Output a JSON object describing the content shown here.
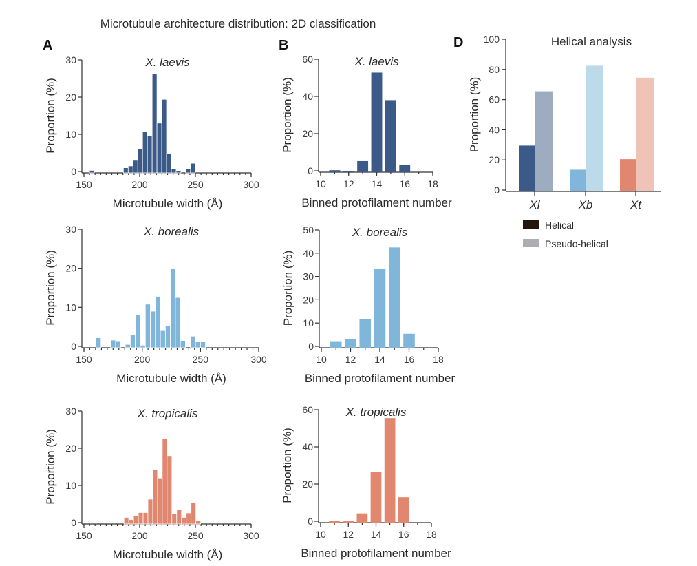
{
  "title": "Microtubule architecture distribution:  2D classification",
  "panel_letters": {
    "A": "A",
    "B": "B",
    "D": "D"
  },
  "colors": {
    "laevis": "#3b5a88",
    "laevis_light": "#9eacc1",
    "laevis_title": "#5f6f9c",
    "borealis": "#80b6d9",
    "borealis_light": "#bddaeb",
    "borealis_title": "#92c4e1",
    "tropicalis": "#e2876f",
    "tropicalis_light": "#f0c3b7",
    "tropicalis_title": "#eea28e",
    "legend_helical": "#24150f",
    "legend_pseudo": "#adadb2"
  },
  "chart_data": [
    {
      "id": "A1",
      "type": "bar",
      "subtitle": "X. laevis",
      "species": "laevis",
      "xlabel": "Microtubule width (Å)",
      "ylabel": "Proportion (%)",
      "xlim": [
        150,
        300
      ],
      "ylim": [
        0,
        30
      ],
      "xticks": [
        150,
        200,
        250,
        300
      ],
      "yticks": [
        0,
        10,
        20,
        30
      ],
      "bin_width": 4.3,
      "bins": [
        {
          "start": 155.0,
          "value": 0.3
        },
        {
          "start": 185.4,
          "value": 1.0
        },
        {
          "start": 189.7,
          "value": 1.5
        },
        {
          "start": 194.0,
          "value": 3.0
        },
        {
          "start": 198.3,
          "value": 6.0
        },
        {
          "start": 202.6,
          "value": 10.7
        },
        {
          "start": 206.9,
          "value": 9.7
        },
        {
          "start": 211.2,
          "value": 26.2
        },
        {
          "start": 215.5,
          "value": 13.0
        },
        {
          "start": 219.8,
          "value": 19.4
        },
        {
          "start": 224.1,
          "value": 4.9
        },
        {
          "start": 228.4,
          "value": 0.8
        },
        {
          "start": 232.7,
          "value": 0.1
        },
        {
          "start": 241.3,
          "value": 0.8
        },
        {
          "start": 245.6,
          "value": 2.2
        }
      ]
    },
    {
      "id": "B1",
      "type": "bar",
      "subtitle": "X. laevis",
      "species": "laevis",
      "xlabel": "Binned protofilament number",
      "ylabel": "Proportion (%)",
      "xlim": [
        10,
        18
      ],
      "ylim": [
        0,
        60
      ],
      "xticks": [
        10,
        12,
        14,
        16,
        18
      ],
      "yticks": [
        0,
        20,
        40,
        60
      ],
      "categories": [
        11,
        12,
        13,
        14,
        15,
        16
      ],
      "values": [
        0.3,
        0,
        5.2,
        52.8,
        38.0,
        3.2
      ]
    },
    {
      "id": "A2",
      "type": "bar",
      "subtitle": "X. borealis",
      "species": "borealis",
      "xlabel": "Microtubule width (Å)",
      "ylabel": "Proportion (%)",
      "xlim": [
        150,
        300
      ],
      "ylim": [
        0,
        30
      ],
      "xticks": [
        150,
        200,
        250,
        300
      ],
      "yticks": [
        0,
        10,
        20,
        30
      ],
      "bin_width": 4.3,
      "bins": [
        {
          "start": 160.3,
          "value": 2.2
        },
        {
          "start": 172.9,
          "value": 1.6
        },
        {
          "start": 177.2,
          "value": 1.4
        },
        {
          "start": 185.5,
          "value": 0.5
        },
        {
          "start": 189.8,
          "value": 3.0
        },
        {
          "start": 194.1,
          "value": 8.0
        },
        {
          "start": 198.4,
          "value": 0.3
        },
        {
          "start": 202.7,
          "value": 10.8
        },
        {
          "start": 207.0,
          "value": 9.0
        },
        {
          "start": 211.3,
          "value": 12.8
        },
        {
          "start": 215.6,
          "value": 4.2
        },
        {
          "start": 219.9,
          "value": 5.3
        },
        {
          "start": 224.2,
          "value": 20.0
        },
        {
          "start": 228.5,
          "value": 12.5
        },
        {
          "start": 232.8,
          "value": 1.5
        },
        {
          "start": 241.4,
          "value": 2.6
        },
        {
          "start": 245.7,
          "value": 1.2
        },
        {
          "start": 250.0,
          "value": 1.2
        }
      ]
    },
    {
      "id": "B2",
      "type": "bar",
      "subtitle": "X. borealis",
      "species": "borealis",
      "xlabel": "Binned protofilament number",
      "ylabel": "Proportion (%)",
      "xlim": [
        10,
        18
      ],
      "ylim": [
        0,
        50
      ],
      "xticks": [
        10,
        12,
        14,
        16,
        18
      ],
      "yticks": [
        0,
        10,
        20,
        30,
        40,
        50
      ],
      "categories": [
        11,
        12,
        13,
        14,
        15,
        16
      ],
      "values": [
        2.2,
        3.0,
        11.8,
        33.3,
        42.5,
        5.4
      ]
    },
    {
      "id": "A3",
      "type": "bar",
      "subtitle": "X. tropicalis",
      "species": "tropicalis",
      "xlabel": "Microtubule width (Å)",
      "ylabel": "Proportion (%)",
      "xlim": [
        150,
        300
      ],
      "ylim": [
        0,
        30
      ],
      "xticks": [
        150,
        200,
        250,
        300
      ],
      "yticks": [
        0,
        10,
        20,
        30
      ],
      "bin_width": 4.3,
      "bins": [
        {
          "start": 185.9,
          "value": 1.4
        },
        {
          "start": 190.2,
          "value": 0.8
        },
        {
          "start": 194.5,
          "value": 1.8
        },
        {
          "start": 198.8,
          "value": 2.7
        },
        {
          "start": 203.1,
          "value": 2.7
        },
        {
          "start": 207.4,
          "value": 6.3
        },
        {
          "start": 211.7,
          "value": 14.3
        },
        {
          "start": 216.0,
          "value": 12.0
        },
        {
          "start": 220.3,
          "value": 22.5
        },
        {
          "start": 224.6,
          "value": 18.0
        },
        {
          "start": 228.9,
          "value": 2.3
        },
        {
          "start": 233.2,
          "value": 3.4
        },
        {
          "start": 237.5,
          "value": 1.4
        },
        {
          "start": 241.8,
          "value": 2.6
        },
        {
          "start": 246.1,
          "value": 5.3
        },
        {
          "start": 250.4,
          "value": 0.6
        }
      ]
    },
    {
      "id": "B3",
      "type": "bar",
      "subtitle": "X. tropicalis",
      "species": "tropicalis",
      "xlabel": "Binned protofilament number",
      "ylabel": "Proportion (%)",
      "xlim": [
        10,
        18
      ],
      "ylim": [
        0,
        60
      ],
      "xticks": [
        10,
        12,
        14,
        16,
        18
      ],
      "yticks": [
        0,
        20,
        40,
        60
      ],
      "categories": [
        11,
        12,
        13,
        14,
        15,
        16
      ],
      "values": [
        0,
        0,
        4.2,
        26.5,
        55.5,
        12.9
      ]
    },
    {
      "id": "D",
      "type": "bar",
      "title": "Helical analysis",
      "xlabel": "",
      "ylabel": "Proportion (%)",
      "ylim": [
        0,
        100
      ],
      "yticks": [
        0,
        20,
        40,
        60,
        80,
        100
      ],
      "categories": [
        {
          "label": "Xl",
          "species": "laevis"
        },
        {
          "label": "Xb",
          "species": "borealis"
        },
        {
          "label": "Xt",
          "species": "tropicalis"
        }
      ],
      "series": [
        {
          "name": "Helical",
          "values": [
            29.5,
            13.5,
            20.5
          ]
        },
        {
          "name": "Pseudo-helical",
          "values": [
            65.5,
            82.5,
            74.5
          ]
        }
      ],
      "legend": [
        "Helical",
        "Pseudo-helical"
      ],
      "legend_position": "below"
    }
  ]
}
